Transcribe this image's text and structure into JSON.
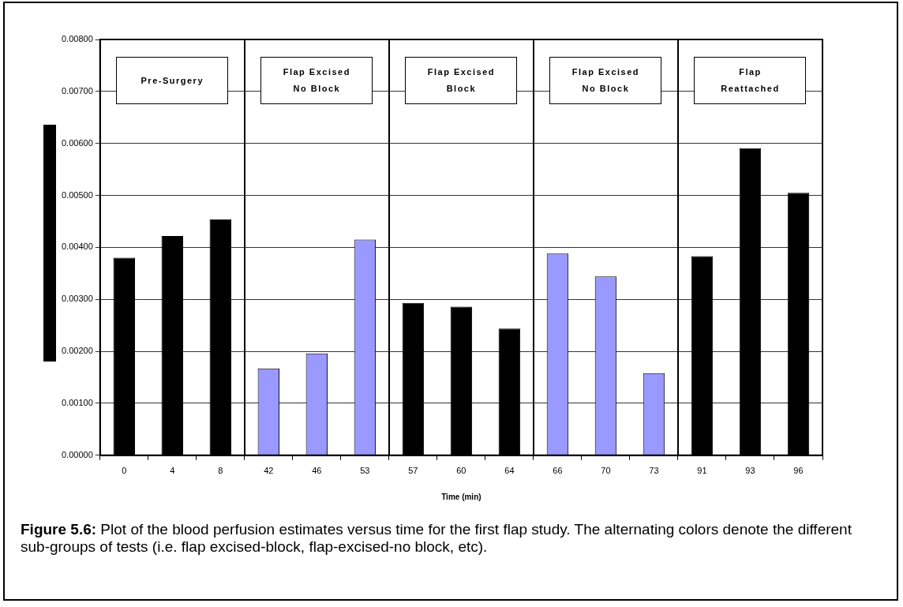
{
  "chart_data": {
    "type": "bar",
    "xlabel": "Time (min)",
    "categories": [
      "0",
      "4",
      "8",
      "42",
      "46",
      "53",
      "57",
      "60",
      "64",
      "66",
      "70",
      "73",
      "91",
      "93",
      "96"
    ],
    "values": [
      0.0038,
      0.00422,
      0.00454,
      0.00167,
      0.00196,
      0.00415,
      0.00293,
      0.00286,
      0.00244,
      0.00388,
      0.00344,
      0.00158,
      0.00383,
      0.00591,
      0.00505
    ],
    "colors": [
      "#000000",
      "#000000",
      "#000000",
      "#9999ff",
      "#9999ff",
      "#9999ff",
      "#000000",
      "#000000",
      "#000000",
      "#9999ff",
      "#9999ff",
      "#9999ff",
      "#000000",
      "#000000",
      "#000000"
    ],
    "ylim": [
      0,
      0.008
    ],
    "yticks": [
      {
        "value": 0,
        "label": "0.00000"
      },
      {
        "value": 0.001,
        "label": "0.00100"
      },
      {
        "value": 0.002,
        "label": "0.00200"
      },
      {
        "value": 0.003,
        "label": "0.00300"
      },
      {
        "value": 0.004,
        "label": "0.00400"
      },
      {
        "value": 0.005,
        "label": "0.00500"
      },
      {
        "value": 0.006,
        "label": "0.00600"
      },
      {
        "value": 0.007,
        "label": "0.00700"
      },
      {
        "value": 0.008,
        "label": "0.00800"
      }
    ],
    "grid": "y",
    "legend": false,
    "annotations": [
      "Pre-Surgery",
      "Flap Excised\nNo Block",
      "Flap Excised\nBlock",
      "Flap Excised\nNo Block",
      "Flap\nReattached",
      "Figure 5.6:  Plot of the blood perfusion estimates versus time for the first flap study.  The alternating colors denote the different sub-groups of tests (i.e. flap excised-block, flap-excised-no block, etc)."
    ]
  }
}
